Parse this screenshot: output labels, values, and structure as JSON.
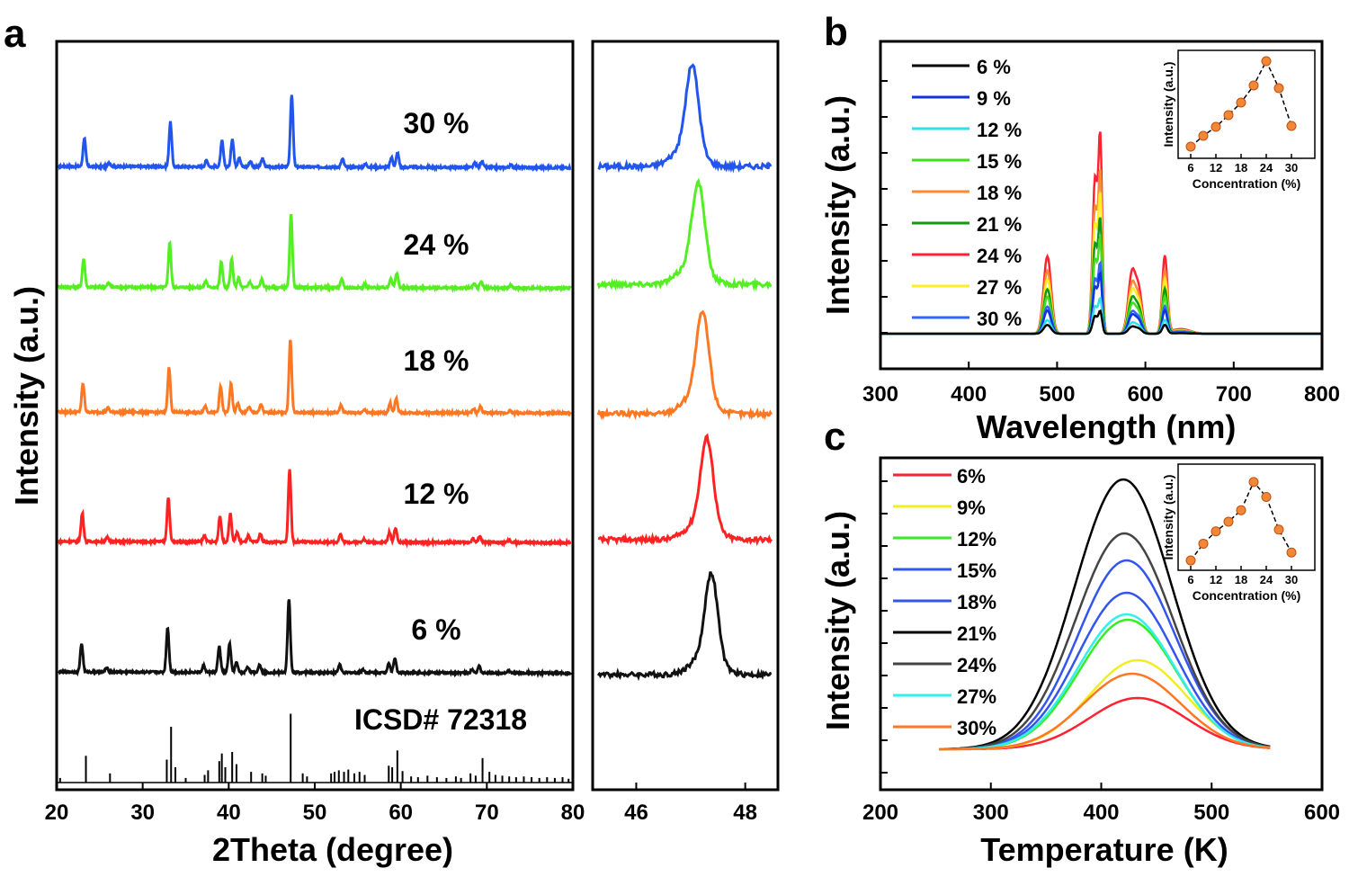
{
  "chart_data": [
    {
      "id": "a",
      "panel": "a",
      "type": "line",
      "xlabel": "2Theta (degree)",
      "ylabel": "Intensity (a.u.)",
      "xlim": [
        20,
        80
      ],
      "xticks": [
        20,
        30,
        40,
        50,
        60,
        70,
        80
      ],
      "series": [
        {
          "name": "30 %",
          "color": "#2255ee",
          "offset": 4
        },
        {
          "name": "24 %",
          "color": "#55ee22",
          "offset": 3
        },
        {
          "name": "18 %",
          "color": "#ff7722",
          "offset": 2
        },
        {
          "name": "12 %",
          "color": "#ff2222",
          "offset": 1
        },
        {
          "name": "6 %",
          "color": "#111111",
          "offset": 0
        }
      ],
      "peaks": [
        [
          22.9,
          0.35
        ],
        [
          25.8,
          0.05
        ],
        [
          32.9,
          0.55
        ],
        [
          37.1,
          0.08
        ],
        [
          38.9,
          0.32
        ],
        [
          40.1,
          0.35
        ],
        [
          40.9,
          0.12
        ],
        [
          42.2,
          0.07
        ],
        [
          43.6,
          0.1
        ],
        [
          47.0,
          0.9
        ],
        [
          52.9,
          0.1
        ],
        [
          55.6,
          0.04
        ],
        [
          58.6,
          0.12
        ],
        [
          59.3,
          0.18
        ],
        [
          68.3,
          0.05
        ],
        [
          69.1,
          0.08
        ],
        [
          72.5,
          0.03
        ]
      ],
      "reference": {
        "label": "ICSD# 72318",
        "lines": [
          [
            20.4,
            0.06
          ],
          [
            23.4,
            0.35
          ],
          [
            26.2,
            0.12
          ],
          [
            32.8,
            0.3
          ],
          [
            33.3,
            0.73
          ],
          [
            33.8,
            0.2
          ],
          [
            35.0,
            0.06
          ],
          [
            37.2,
            0.1
          ],
          [
            37.6,
            0.16
          ],
          [
            38.9,
            0.28
          ],
          [
            39.2,
            0.38
          ],
          [
            39.6,
            0.2
          ],
          [
            40.4,
            0.4
          ],
          [
            40.9,
            0.24
          ],
          [
            42.6,
            0.14
          ],
          [
            43.9,
            0.12
          ],
          [
            44.3,
            0.09
          ],
          [
            47.2,
            0.9
          ],
          [
            48.6,
            0.12
          ],
          [
            49.1,
            0.08
          ],
          [
            51.9,
            0.12
          ],
          [
            52.3,
            0.14
          ],
          [
            52.8,
            0.16
          ],
          [
            53.4,
            0.14
          ],
          [
            53.9,
            0.17
          ],
          [
            54.6,
            0.12
          ],
          [
            55.2,
            0.14
          ],
          [
            55.8,
            0.1
          ],
          [
            58.6,
            0.22
          ],
          [
            59.0,
            0.2
          ],
          [
            59.6,
            0.42
          ],
          [
            60.2,
            0.15
          ],
          [
            61.2,
            0.08
          ],
          [
            62.0,
            0.07
          ],
          [
            63.1,
            0.09
          ],
          [
            64.2,
            0.07
          ],
          [
            65.3,
            0.06
          ],
          [
            66.4,
            0.08
          ],
          [
            67.0,
            0.06
          ],
          [
            68.1,
            0.12
          ],
          [
            68.7,
            0.09
          ],
          [
            69.5,
            0.32
          ],
          [
            70.3,
            0.14
          ],
          [
            71.0,
            0.1
          ],
          [
            71.8,
            0.09
          ],
          [
            72.6,
            0.08
          ],
          [
            73.4,
            0.07
          ],
          [
            74.3,
            0.08
          ],
          [
            75.2,
            0.07
          ],
          [
            76.1,
            0.06
          ],
          [
            77.0,
            0.07
          ],
          [
            77.9,
            0.06
          ],
          [
            78.8,
            0.07
          ],
          [
            79.5,
            0.05
          ]
        ]
      }
    },
    {
      "id": "a-zoom",
      "panel": "a (zoom)",
      "type": "line",
      "xlim": [
        45.2,
        48.6
      ],
      "xticks": [
        46,
        48
      ],
      "peak_positions": [
        47.03,
        47.14,
        47.22,
        47.3,
        47.38
      ],
      "series_order": [
        "30 %",
        "24 %",
        "18 %",
        "12 %",
        "6 %"
      ]
    },
    {
      "id": "b",
      "panel": "b",
      "type": "line",
      "xlabel": "Wavelength (nm)",
      "ylabel": "Intensity (a.u.)",
      "xlim": [
        300,
        800
      ],
      "xticks": [
        300,
        400,
        500,
        600,
        700,
        800
      ],
      "peaks": [
        [
          489,
          0.25,
          6
        ],
        [
          543,
          0.5,
          4
        ],
        [
          549,
          0.6,
          3
        ],
        [
          585,
          0.2,
          6
        ],
        [
          593,
          0.12,
          5
        ],
        [
          622,
          0.25,
          4
        ]
      ],
      "series": [
        {
          "name": "6 %",
          "color": "#000000",
          "scale": 0.09
        },
        {
          "name": "9 %",
          "color": "#1133dd",
          "scale": 0.24
        },
        {
          "name": "12 %",
          "color": "#33ddee",
          "scale": 0.14
        },
        {
          "name": "15 %",
          "color": "#44dd22",
          "scale": 0.38
        },
        {
          "name": "18 %",
          "color": "#ff8833",
          "scale": 0.65
        },
        {
          "name": "21 %",
          "color": "#119911",
          "scale": 0.46
        },
        {
          "name": "24 %",
          "color": "#ff2233",
          "scale": 0.8
        },
        {
          "name": "27 %",
          "color": "#ffee22",
          "scale": 0.56
        },
        {
          "name": "30 %",
          "color": "#3366ff",
          "scale": 0.28
        }
      ],
      "inset": {
        "xlabel": "Concentration (%)",
        "ylabel": "Intensity (a.u.)",
        "xticks": [
          6,
          12,
          18,
          24,
          30
        ],
        "x": [
          6,
          9,
          12,
          15,
          18,
          21,
          24,
          27,
          30
        ],
        "y": [
          0.05,
          0.17,
          0.27,
          0.4,
          0.54,
          0.73,
          1.0,
          0.7,
          0.28
        ]
      }
    },
    {
      "id": "c",
      "panel": "c",
      "type": "line",
      "xlabel": "Temperature (K)",
      "ylabel": "Intensity (a.u.)",
      "xlim": [
        200,
        600
      ],
      "xticks": [
        200,
        300,
        400,
        500,
        600
      ],
      "series": [
        {
          "name": "6%",
          "color": "#ff2233",
          "peak_T": 433,
          "amp": 0.19
        },
        {
          "name": "9%",
          "color": "#eeee22",
          "peak_T": 433,
          "amp": 0.33
        },
        {
          "name": "12%",
          "color": "#33ee22",
          "peak_T": 424,
          "amp": 0.48
        },
        {
          "name": "15%",
          "color": "#3355ee",
          "peak_T": 423,
          "amp": 0.7
        },
        {
          "name": "18%",
          "color": "#3355ee",
          "peak_T": 423,
          "amp": 0.58
        },
        {
          "name": "21%",
          "color": "#000000",
          "peak_T": 420,
          "amp": 1.0
        },
        {
          "name": "24%",
          "color": "#444444",
          "peak_T": 421,
          "amp": 0.8
        },
        {
          "name": "27%",
          "color": "#33eeee",
          "peak_T": 423,
          "amp": 0.5
        },
        {
          "name": "30%",
          "color": "#ff7722",
          "peak_T": 428,
          "amp": 0.28
        }
      ],
      "inset": {
        "xlabel": "Concentration (%)",
        "ylabel": "Intensity (a.u.)",
        "xticks": [
          6,
          12,
          18,
          24,
          30
        ],
        "x": [
          6,
          9,
          12,
          15,
          18,
          21,
          24,
          27,
          30
        ],
        "y": [
          0.03,
          0.22,
          0.36,
          0.47,
          0.6,
          0.92,
          0.75,
          0.38,
          0.12
        ]
      }
    }
  ],
  "labels": {
    "a": "a",
    "b": "b",
    "c": "c"
  }
}
